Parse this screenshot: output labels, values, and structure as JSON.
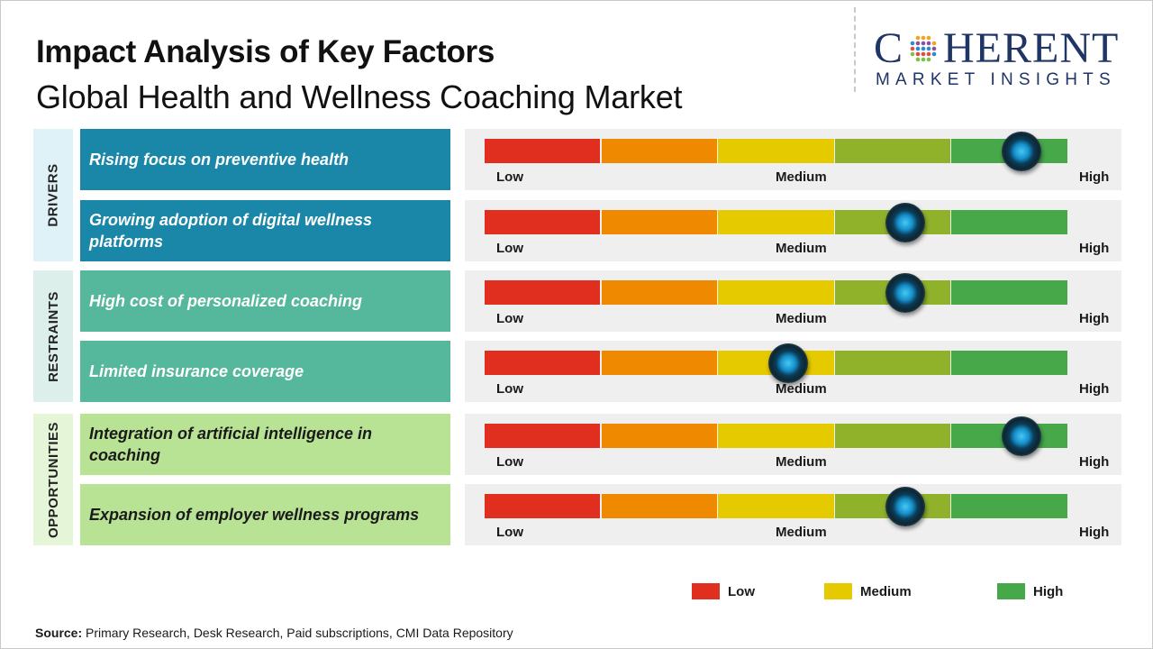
{
  "header": {
    "title": "Impact Analysis of Key Factors",
    "subtitle": "Global Health and Wellness Coaching Market"
  },
  "logo": {
    "top_left": "C",
    "top_right": "HERENT",
    "bottom": "MARKET INSIGHTS"
  },
  "colors": {
    "drivers_label_bg": "#dff2f8",
    "restraints_label_bg": "#dcefea",
    "opportunities_label_bg": "#e4f5d8",
    "drivers_factor_bg": "#1a87a8",
    "restraints_factor_bg": "#55b79b",
    "opportunities_factor_bg": "#b9e394",
    "scale": [
      "#e02f1e",
      "#ef8a00",
      "#e5ca00",
      "#8fb22a",
      "#47a84a"
    ],
    "legend_low": "#e02f1e",
    "legend_medium": "#e5ca00",
    "legend_high": "#47a84a"
  },
  "chart_data": {
    "type": "table",
    "title": "Impact Analysis of Key Factors",
    "subtitle": "Global Health and Wellness Coaching Market",
    "scale_labels": [
      "Low",
      "Medium",
      "High"
    ],
    "scale_levels": 5,
    "categories": [
      {
        "name": "DRIVERS",
        "factors": [
          {
            "label": "Rising focus on preventive health",
            "impact": 4.6
          },
          {
            "label": "Growing adoption of digital wellness platforms",
            "impact": 3.6
          }
        ]
      },
      {
        "name": "RESTRAINTS",
        "factors": [
          {
            "label": "High cost of personalized coaching",
            "impact": 3.6
          },
          {
            "label": "Limited insurance coverage",
            "impact": 2.6
          }
        ]
      },
      {
        "name": "OPPORTUNITIES",
        "factors": [
          {
            "label": "Integration of artificial intelligence in coaching",
            "impact": 4.6
          },
          {
            "label": "Expansion of employer wellness programs",
            "impact": 3.6
          }
        ]
      }
    ],
    "legend": [
      "Low",
      "Medium",
      "High"
    ]
  },
  "source": {
    "label": "Source:",
    "text": "Primary Research, Desk Research, Paid subscriptions, CMI Data Repository"
  }
}
